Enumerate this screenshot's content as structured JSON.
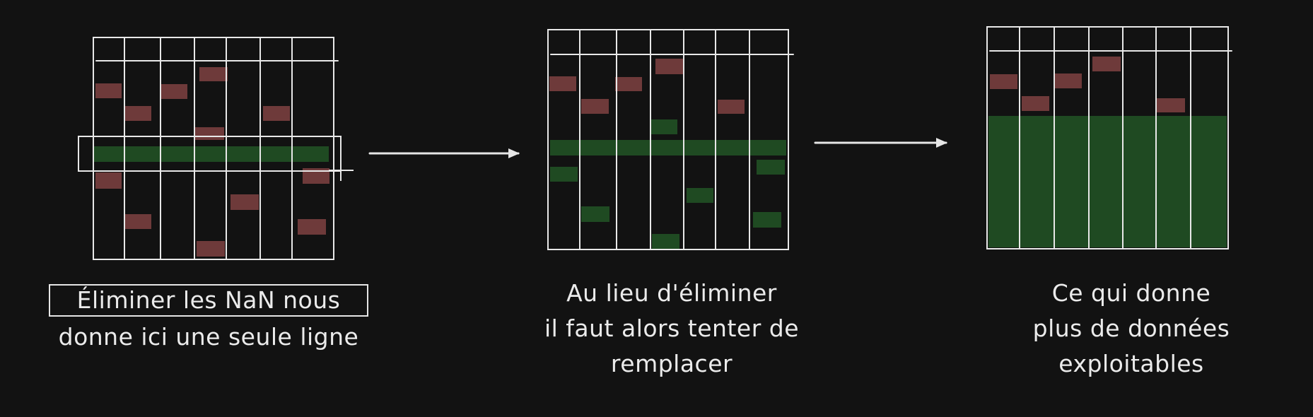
{
  "colors": {
    "background": "#121212",
    "grid_line": "#e8e8e8",
    "missing_cell": "#6e3a3a",
    "filled_cell": "#1f4a22",
    "arrow": "#e6e6e6",
    "text": "#ebebeb"
  },
  "panels": [
    {
      "name": "panel-drop-rows",
      "description_lines": [
        "Éliminer les NaN nous",
        "donne ici une seule ligne"
      ]
    },
    {
      "name": "panel-impute",
      "description_lines": [
        "Au lieu d'éliminer",
        "il faut alors tenter de",
        "remplacer"
      ]
    },
    {
      "name": "panel-result",
      "description_lines": [
        "Ce qui donne",
        "plus de données",
        "exploitables"
      ]
    }
  ]
}
